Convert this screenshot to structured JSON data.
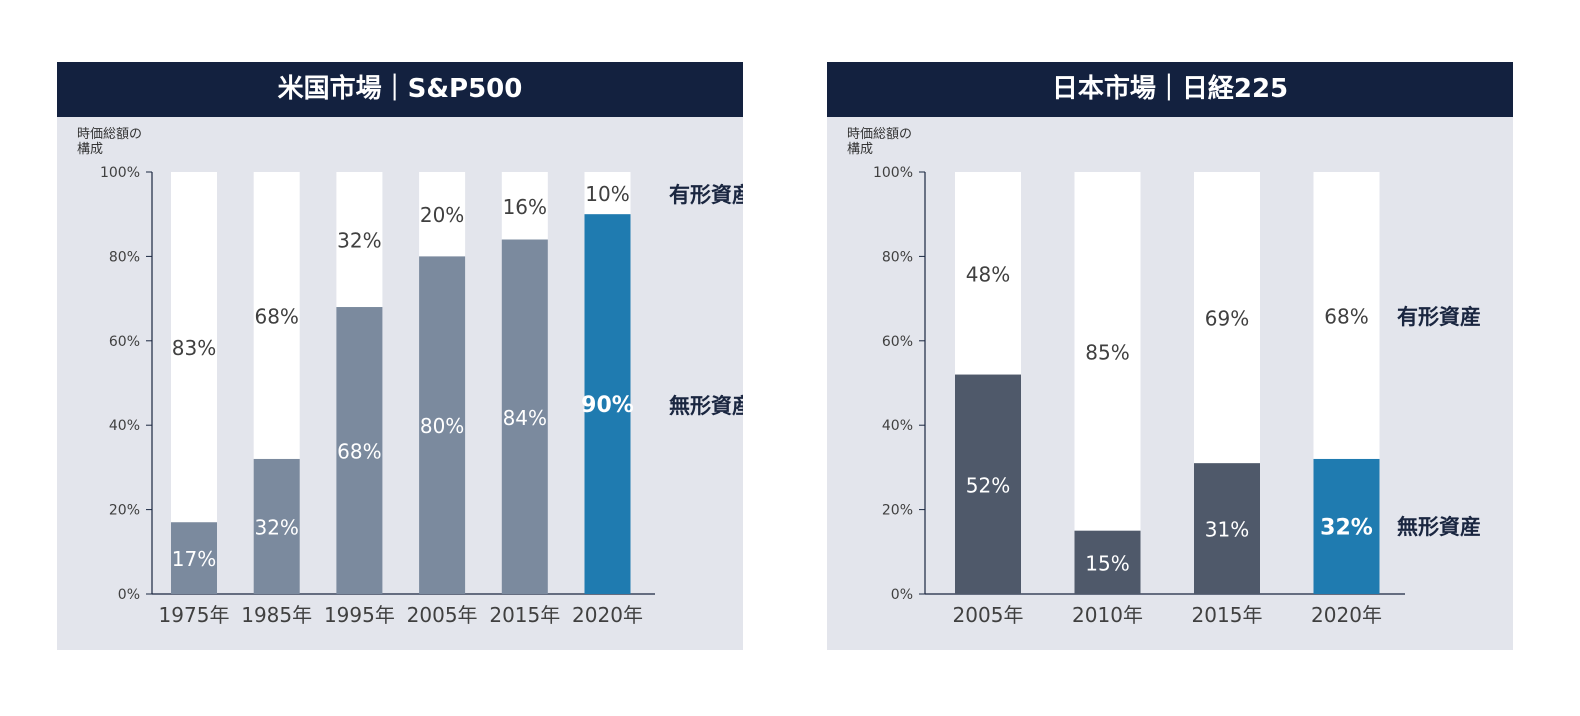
{
  "panels": [
    {
      "title": "米国市場｜S&P500",
      "axis_title_line1": "時価総額の",
      "axis_title_line2": "構成"
    },
    {
      "title": "日本市場｜日経225",
      "axis_title_line1": "時価総額の",
      "axis_title_line2": "構成"
    }
  ],
  "colors": {
    "header_bg": "#13213f",
    "panel_bg": "#e3e5ec",
    "tangible": "#ffffff",
    "us_intangible": "#7b8a9e",
    "jp_intangible": "#4f596a",
    "highlight": "#1f7bb0",
    "text": "#404040",
    "label_dark": "#1a2640"
  },
  "chart_data": [
    {
      "type": "bar",
      "stacked": true,
      "title": "米国市場｜S&P500",
      "ylabel": "時価総額の構成",
      "ylim": [
        0,
        100
      ],
      "y_ticks": [
        "0%",
        "20%",
        "40%",
        "60%",
        "80%",
        "100%"
      ],
      "categories": [
        "1975年",
        "1985年",
        "1995年",
        "2005年",
        "2015年",
        "2020年"
      ],
      "series": [
        {
          "name": "無形資産",
          "values": [
            17,
            32,
            68,
            80,
            84,
            90
          ],
          "labels": [
            "17%",
            "32%",
            "68%",
            "80%",
            "84%",
            "90%"
          ]
        },
        {
          "name": "有形資産",
          "values": [
            83,
            68,
            32,
            20,
            16,
            10
          ],
          "labels": [
            "83%",
            "68%",
            "32%",
            "20%",
            "16%",
            "10%"
          ]
        }
      ],
      "highlight_category": "2020年"
    },
    {
      "type": "bar",
      "stacked": true,
      "title": "日本市場｜日経225",
      "ylabel": "時価総額の構成",
      "ylim": [
        0,
        100
      ],
      "y_ticks": [
        "0%",
        "20%",
        "40%",
        "60%",
        "80%",
        "100%"
      ],
      "categories": [
        "2005年",
        "2010年",
        "2015年",
        "2020年"
      ],
      "series": [
        {
          "name": "無形資産",
          "values": [
            52,
            15,
            31,
            32
          ],
          "labels": [
            "52%",
            "15%",
            "31%",
            "32%"
          ]
        },
        {
          "name": "有形資産",
          "values": [
            48,
            85,
            69,
            68
          ],
          "labels": [
            "48%",
            "85%",
            "69%",
            "68%"
          ]
        }
      ],
      "highlight_category": "2020年"
    }
  ]
}
